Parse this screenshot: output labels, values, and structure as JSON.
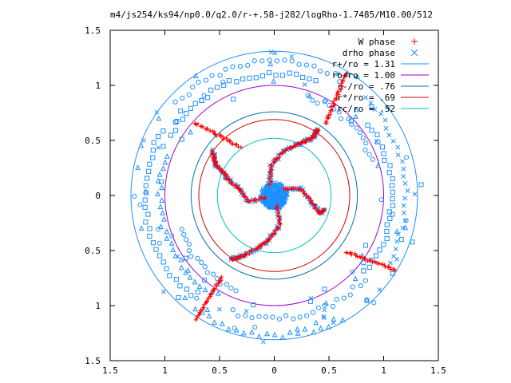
{
  "chart_data": {
    "type": "scatter",
    "title": "m4/js254/ks94/np0.0/q2.0/r-+.58-j282/logRho-1.7485/M10.00/512",
    "xlabel": "",
    "ylabel": "",
    "xlim": [
      -1.5,
      1.5
    ],
    "ylim": [
      -1.5,
      1.5
    ],
    "x_tick_labels": [
      "1.5",
      "1",
      "0.5",
      "0",
      "0.5",
      "1",
      "1.5"
    ],
    "y_tick_labels": [
      "1.5",
      "1",
      "0.5",
      "0",
      "0.5",
      "1",
      "1.5"
    ],
    "x_tick_values": [
      -1.5,
      -1,
      -0.5,
      0,
      0.5,
      1,
      1.5
    ],
    "y_tick_values": [
      1.5,
      1,
      0.5,
      0,
      -0.5,
      -1,
      -1.5
    ],
    "grid": false,
    "legend_position": "top-right",
    "series": [
      {
        "name": "W phase",
        "marker": "+",
        "color": "#ff0000",
        "bars": [
          {
            "from": [
              0.47,
              0.65
            ],
            "to": [
              0.66,
              1.11
            ]
          },
          {
            "from": [
              -0.73,
              0.66
            ],
            "to": [
              -0.31,
              0.44
            ]
          },
          {
            "from": [
              -0.71,
              -1.12
            ],
            "to": [
              -0.48,
              -0.74
            ]
          },
          {
            "from": [
              0.66,
              -0.51
            ],
            "to": [
              1.11,
              -0.68
            ]
          }
        ],
        "arms": [
          [
            [
              0.09,
              0.06
            ],
            [
              0.24,
              0.06
            ],
            [
              0.34,
              -0.06
            ],
            [
              0.41,
              -0.16
            ],
            [
              0.46,
              -0.13
            ]
          ],
          [
            [
              -0.04,
              0.1
            ],
            [
              -0.03,
              0.27
            ],
            [
              0.07,
              0.39
            ],
            [
              0.18,
              0.45
            ],
            [
              0.28,
              0.49
            ],
            [
              0.36,
              0.53
            ],
            [
              0.38,
              0.58
            ],
            [
              0.4,
              0.6
            ]
          ],
          [
            [
              -0.08,
              -0.02
            ],
            [
              -0.24,
              -0.05
            ],
            [
              -0.32,
              0.06
            ],
            [
              -0.42,
              0.14
            ],
            [
              -0.46,
              0.21
            ],
            [
              -0.53,
              0.27
            ],
            [
              -0.55,
              0.34
            ],
            [
              -0.56,
              0.41
            ]
          ],
          [
            [
              0.02,
              -0.09
            ],
            [
              0.05,
              -0.27
            ],
            [
              -0.03,
              -0.38
            ],
            [
              -0.12,
              -0.46
            ],
            [
              -0.25,
              -0.53
            ],
            [
              -0.32,
              -0.56
            ],
            [
              -0.4,
              -0.58
            ]
          ]
        ]
      },
      {
        "name": "drho phase",
        "marker": "x",
        "color": "#1e90ff"
      }
    ],
    "circles": [
      {
        "name": "r+/ro = 1.31",
        "radius": 1.31,
        "color": "#1e90ff"
      },
      {
        "name": "ro/ro = 1.00",
        "radius": 1.0,
        "color": "#a000d0"
      },
      {
        "name": "r-/ro = .76",
        "radius": 0.76,
        "color": "#0072b2"
      },
      {
        "name": "r*/ro = .69",
        "radius": 0.69,
        "color": "#d00000"
      },
      {
        "name": "rc/ro = .52",
        "radius": 0.52,
        "color": "#00c0c0"
      }
    ]
  }
}
